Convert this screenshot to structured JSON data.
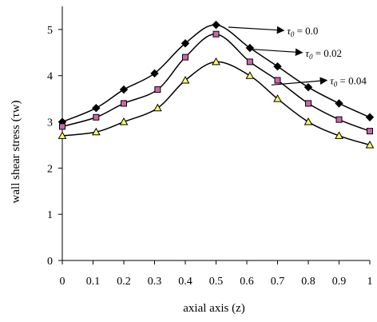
{
  "chart_data": {
    "type": "line",
    "xlabel": "axial axis (z)",
    "ylabel": "wall shear stress (τw)",
    "xlim": [
      0,
      1
    ],
    "ylim": [
      0,
      5.5
    ],
    "xticks": [
      "0",
      "0.1",
      "0.2",
      "0.3",
      "0.4",
      "0.5",
      "0.6",
      "0.7",
      "0.8",
      "0.9",
      "1"
    ],
    "yticks": [
      "0",
      "1",
      "2",
      "3",
      "4",
      "5"
    ],
    "grid": false,
    "series": [
      {
        "name": "τ0 = 0.0",
        "marker": "diamond",
        "marker_color": "#000000",
        "x": [
          0,
          0.11,
          0.2,
          0.3,
          0.4,
          0.5,
          0.61,
          0.7,
          0.8,
          0.9,
          1.0
        ],
        "y": [
          3.0,
          3.3,
          3.7,
          4.05,
          4.7,
          5.1,
          4.6,
          4.2,
          3.75,
          3.4,
          3.1
        ]
      },
      {
        "name": "τ0 = 0.02",
        "marker": "square",
        "marker_color": "#cc66aa",
        "x": [
          0,
          0.11,
          0.2,
          0.31,
          0.4,
          0.5,
          0.61,
          0.7,
          0.8,
          0.9,
          1.0
        ],
        "y": [
          2.9,
          3.1,
          3.4,
          3.7,
          4.4,
          4.9,
          4.3,
          3.9,
          3.4,
          3.05,
          2.8
        ]
      },
      {
        "name": "τ0 = 0.04",
        "marker": "triangle",
        "marker_color": "#ffff66",
        "x": [
          0,
          0.11,
          0.2,
          0.31,
          0.4,
          0.5,
          0.61,
          0.7,
          0.8,
          0.9,
          1.0
        ],
        "y": [
          2.7,
          2.78,
          3.0,
          3.3,
          3.9,
          4.3,
          4.0,
          3.5,
          3.0,
          2.7,
          2.5
        ]
      }
    ],
    "annotations": [
      {
        "series": 0,
        "symbol": "τ",
        "sub": "0",
        "value": " = 0.0",
        "arrow_from": [
          0.54,
          5.05
        ],
        "arrow_to": [
          0.72,
          4.98
        ]
      },
      {
        "series": 1,
        "symbol": "τ",
        "sub": "0",
        "value": " = 0.02",
        "arrow_from": [
          0.6,
          4.58
        ],
        "arrow_to": [
          0.78,
          4.5
        ]
      },
      {
        "series": 2,
        "symbol": "τ",
        "sub": "0",
        "value": " = 0.04",
        "arrow_from": [
          0.68,
          3.8
        ],
        "arrow_to": [
          0.86,
          3.9
        ]
      }
    ]
  }
}
